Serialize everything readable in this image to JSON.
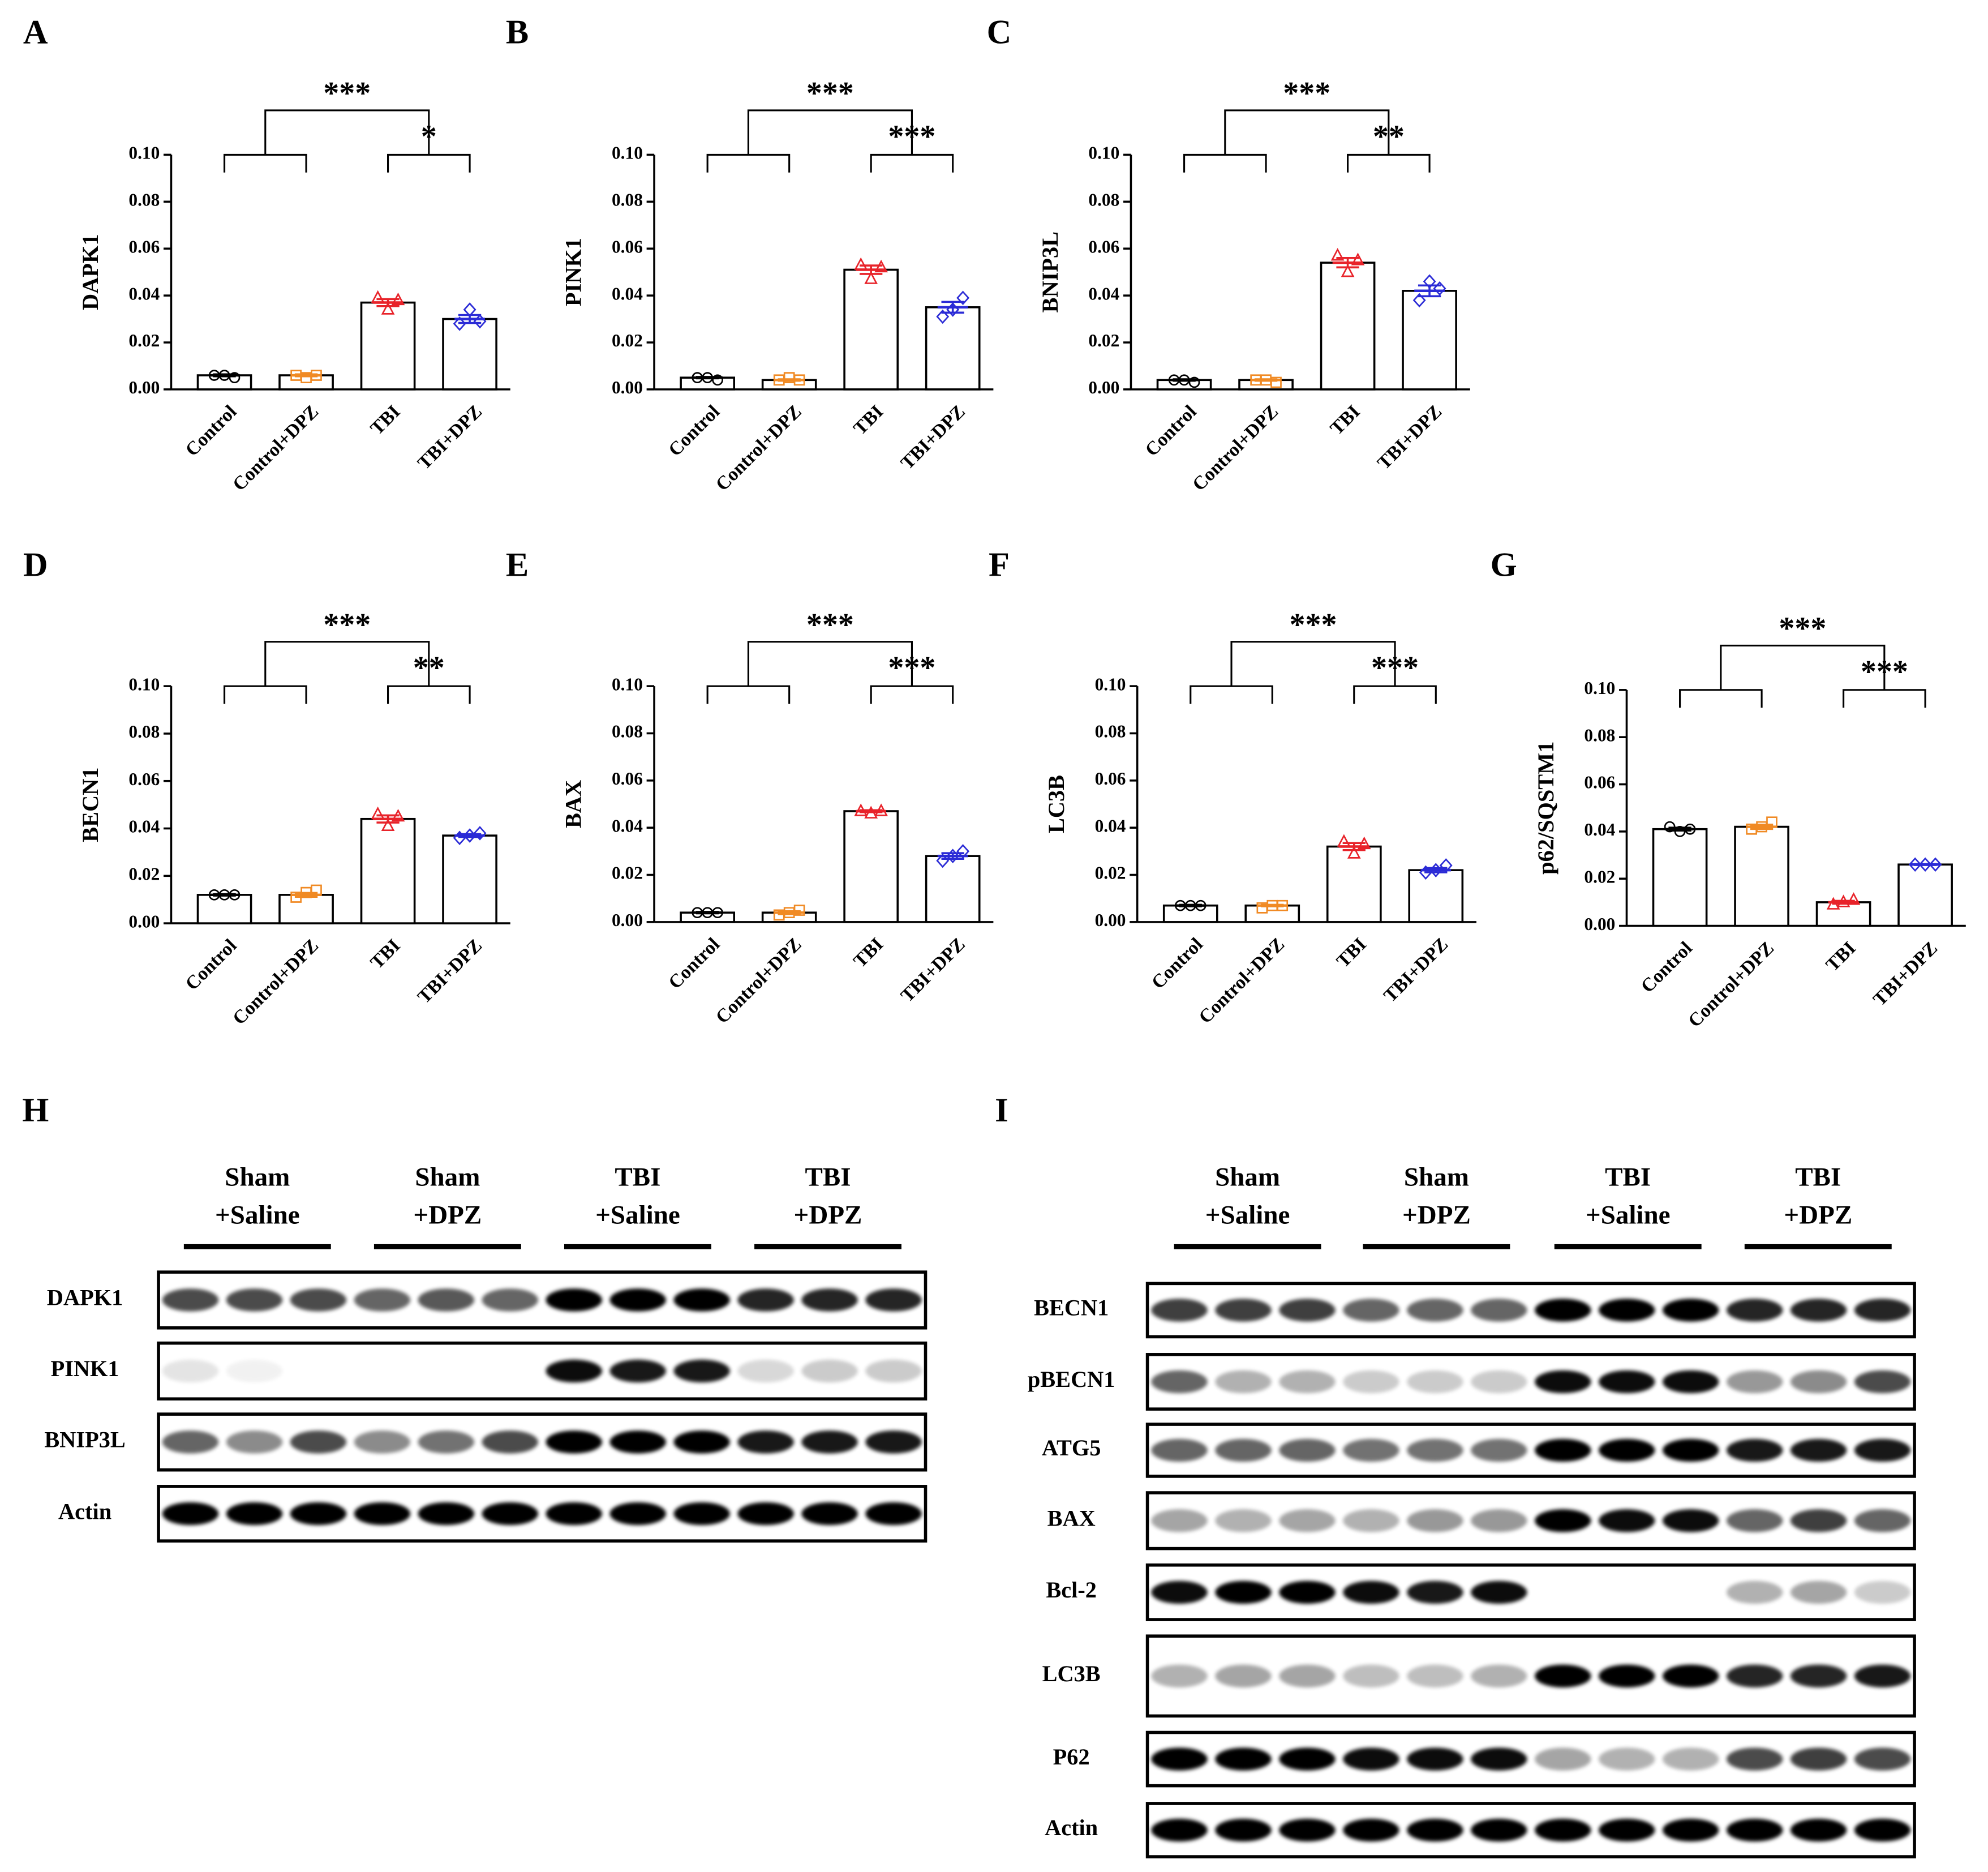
{
  "chart_data": [
    {
      "type": "bar",
      "panel": "A",
      "ylabel": "DAPK1",
      "categories": [
        "Control",
        "Control+DPZ",
        "TBI",
        "TBI+DPZ"
      ],
      "values": [
        0.006,
        0.006,
        0.037,
        0.03
      ],
      "errors": [
        0.0004,
        0.0004,
        0.0015,
        0.0017
      ],
      "points": [
        [
          0.006,
          0.006,
          0.005
        ],
        [
          0.006,
          0.005,
          0.006
        ],
        [
          0.039,
          0.034,
          0.038
        ],
        [
          0.028,
          0.034,
          0.029
        ]
      ],
      "colors": [
        "#000000",
        "#f08a24",
        "#e8232a",
        "#2b2bd6"
      ],
      "markers": [
        "circle",
        "square",
        "triangle",
        "diamond"
      ],
      "ylim": [
        0,
        0.1
      ],
      "yticks": [
        {
          "value": 0,
          "label": "0.00"
        },
        0.02,
        0.04,
        0.06,
        0.08,
        {
          "value": 0.1,
          "label": "0.10"
        }
      ],
      "annotations": [
        {
          "text": "***"
        },
        {
          "text": "*"
        }
      ]
    },
    {
      "type": "bar",
      "panel": "B",
      "ylabel": "PINK1",
      "categories": [
        "Control",
        "Control+DPZ",
        "TBI",
        "TBI+DPZ"
      ],
      "values": [
        0.005,
        0.004,
        0.051,
        0.035
      ],
      "errors": [
        0.0003,
        0.0003,
        0.0018,
        0.0023
      ],
      "points": [
        [
          0.005,
          0.005,
          0.004
        ],
        [
          0.004,
          0.005,
          0.004
        ],
        [
          0.053,
          0.047,
          0.052
        ],
        [
          0.031,
          0.034,
          0.039
        ]
      ],
      "colors": [
        "#000000",
        "#f08a24",
        "#e8232a",
        "#2b2bd6"
      ],
      "markers": [
        "circle",
        "square",
        "triangle",
        "diamond"
      ],
      "ylim": [
        0,
        0.1
      ],
      "yticks": [
        {
          "value": 0,
          "label": "0.00"
        },
        0.02,
        0.04,
        0.06,
        0.08,
        {
          "value": 0.1,
          "label": "0.10"
        }
      ],
      "annotations": [
        {
          "text": "***"
        },
        {
          "text": "***"
        }
      ]
    },
    {
      "type": "bar",
      "panel": "C",
      "ylabel": "BNIP3L",
      "categories": [
        "Control",
        "Control+DPZ",
        "TBI",
        "TBI+DPZ"
      ],
      "values": [
        0.004,
        0.004,
        0.054,
        0.042
      ],
      "errors": [
        0.0003,
        0.0003,
        0.002,
        0.0023
      ],
      "points": [
        [
          0.004,
          0.004,
          0.003
        ],
        [
          0.004,
          0.004,
          0.003
        ],
        [
          0.057,
          0.05,
          0.055
        ],
        [
          0.038,
          0.046,
          0.043
        ]
      ],
      "colors": [
        "#000000",
        "#f08a24",
        "#e8232a",
        "#2b2bd6"
      ],
      "markers": [
        "circle",
        "square",
        "triangle",
        "diamond"
      ],
      "ylim": [
        0,
        0.1
      ],
      "yticks": [
        {
          "value": 0,
          "label": "0.00"
        },
        0.02,
        0.04,
        0.06,
        0.08,
        {
          "value": 0.1,
          "label": "0.10"
        }
      ],
      "annotations": [
        {
          "text": "***"
        },
        {
          "text": "**"
        }
      ]
    },
    {
      "type": "bar",
      "panel": "D",
      "ylabel": "BECN1",
      "categories": [
        "Control",
        "Control+DPZ",
        "TBI",
        "TBI+DPZ"
      ],
      "values": [
        0.012,
        0.012,
        0.044,
        0.037
      ],
      "errors": [
        0.0003,
        0.0008,
        0.0015,
        0.0006
      ],
      "points": [
        [
          0.012,
          0.012,
          0.012
        ],
        [
          0.011,
          0.013,
          0.014
        ],
        [
          0.046,
          0.041,
          0.045
        ],
        [
          0.036,
          0.037,
          0.038
        ]
      ],
      "colors": [
        "#000000",
        "#f08a24",
        "#e8232a",
        "#2b2bd6"
      ],
      "markers": [
        "circle",
        "square",
        "triangle",
        "diamond"
      ],
      "ylim": [
        0,
        0.1
      ],
      "yticks": [
        {
          "value": 0,
          "label": "0.00"
        },
        0.02,
        0.04,
        0.06,
        0.08,
        {
          "value": 0.1,
          "label": "0.10"
        }
      ],
      "annotations": [
        {
          "text": "***"
        },
        {
          "text": "**"
        }
      ]
    },
    {
      "type": "bar",
      "panel": "E",
      "ylabel": "BAX",
      "categories": [
        "Control",
        "Control+DPZ",
        "TBI",
        "TBI+DPZ"
      ],
      "values": [
        0.004,
        0.004,
        0.047,
        0.028
      ],
      "errors": [
        0.0003,
        0.0006,
        0.0004,
        0.0012
      ],
      "points": [
        [
          0.004,
          0.004,
          0.004
        ],
        [
          0.003,
          0.004,
          0.005
        ],
        [
          0.047,
          0.046,
          0.047
        ],
        [
          0.026,
          0.028,
          0.03
        ]
      ],
      "colors": [
        "#000000",
        "#f08a24",
        "#e8232a",
        "#2b2bd6"
      ],
      "markers": [
        "circle",
        "square",
        "triangle",
        "diamond"
      ],
      "ylim": [
        0,
        0.1
      ],
      "yticks": [
        {
          "value": 0,
          "label": "0.00"
        },
        0.02,
        0.04,
        0.06,
        0.08,
        {
          "value": 0.1,
          "label": "0.10"
        }
      ],
      "annotations": [
        {
          "text": "***"
        },
        {
          "text": "***"
        }
      ]
    },
    {
      "type": "bar",
      "panel": "F",
      "ylabel": "LC3B",
      "categories": [
        "Control",
        "Control+DPZ",
        "TBI",
        "TBI+DPZ"
      ],
      "values": [
        0.007,
        0.007,
        0.032,
        0.022
      ],
      "errors": [
        0.0003,
        0.0003,
        0.0015,
        0.0009
      ],
      "points": [
        [
          0.007,
          0.007,
          0.007
        ],
        [
          0.006,
          0.007,
          0.007
        ],
        [
          0.034,
          0.029,
          0.033
        ],
        [
          0.021,
          0.022,
          0.024
        ]
      ],
      "colors": [
        "#000000",
        "#f08a24",
        "#e8232a",
        "#2b2bd6"
      ],
      "markers": [
        "circle",
        "square",
        "triangle",
        "diamond"
      ],
      "ylim": [
        0,
        0.1
      ],
      "yticks": [
        {
          "value": 0,
          "label": "0.00"
        },
        0.02,
        0.04,
        0.06,
        0.08,
        {
          "value": 0.1,
          "label": "0.10"
        }
      ],
      "annotations": [
        {
          "text": "***"
        },
        {
          "text": "***"
        }
      ]
    },
    {
      "type": "bar",
      "panel": "G",
      "ylabel": "p62/SQSTM1",
      "categories": [
        "Control",
        "Control+DPZ",
        "TBI",
        "TBI+DPZ"
      ],
      "values": [
        0.041,
        0.042,
        0.01,
        0.026
      ],
      "errors": [
        0.0006,
        0.0009,
        0.0006,
        0.0002
      ],
      "points": [
        [
          0.042,
          0.04,
          0.041
        ],
        [
          0.041,
          0.042,
          0.044
        ],
        [
          0.009,
          0.01,
          0.011
        ],
        [
          0.026,
          0.026,
          0.026
        ]
      ],
      "colors": [
        "#000000",
        "#f08a24",
        "#e8232a",
        "#2b2bd6"
      ],
      "markers": [
        "circle",
        "square",
        "triangle",
        "diamond"
      ],
      "ylim": [
        0,
        0.1
      ],
      "yticks": [
        {
          "value": 0,
          "label": "0.00"
        },
        0.02,
        0.04,
        0.06,
        0.08,
        {
          "value": 0.1,
          "label": "0.10"
        }
      ],
      "annotations": [
        {
          "text": "***"
        },
        {
          "text": "***"
        }
      ]
    }
  ],
  "blots": [
    {
      "panel": "H",
      "groups": [
        [
          "Sham",
          "+Saline"
        ],
        [
          "Sham",
          "+DPZ"
        ],
        [
          "TBI",
          "+Saline"
        ],
        [
          "TBI",
          "+DPZ"
        ]
      ],
      "proteins": [
        "DAPK1",
        "PINK1",
        "BNIP3L",
        "Actin"
      ]
    },
    {
      "panel": "I",
      "groups": [
        [
          "Sham",
          "+Saline"
        ],
        [
          "Sham",
          "+DPZ"
        ],
        [
          "TBI",
          "+Saline"
        ],
        [
          "TBI",
          "+DPZ"
        ]
      ],
      "proteins": [
        "BECN1",
        "pBECN1",
        "ATG5",
        "BAX",
        "Bcl-2",
        "LC3B",
        "P62",
        "Actin"
      ]
    }
  ]
}
